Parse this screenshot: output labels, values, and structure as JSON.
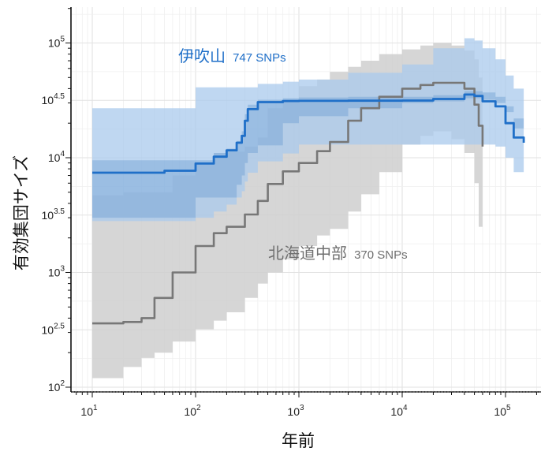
{
  "chart_data": {
    "type": "line",
    "xlabel": "年前",
    "ylabel": "有効集団サイズ",
    "x_scale": "log10",
    "y_scale": "log10",
    "xlim": [
      5,
      200000
    ],
    "ylim": [
      80,
      220000
    ],
    "grid": true,
    "x_ticks": [
      {
        "value": 10,
        "base": "10",
        "exp": "1"
      },
      {
        "value": 100,
        "base": "10",
        "exp": "2"
      },
      {
        "value": 1000,
        "base": "10",
        "exp": "3"
      },
      {
        "value": 10000,
        "base": "10",
        "exp": "4"
      },
      {
        "value": 100000,
        "base": "10",
        "exp": "5"
      }
    ],
    "y_ticks": [
      {
        "value": 100,
        "base": "10",
        "exp": "2"
      },
      {
        "value": 316.2,
        "base": "10",
        "exp": "2.5"
      },
      {
        "value": 1000,
        "base": "10",
        "exp": "3"
      },
      {
        "value": 3162,
        "base": "10",
        "exp": "3.5"
      },
      {
        "value": 10000,
        "base": "10",
        "exp": "4"
      },
      {
        "value": 31623,
        "base": "10",
        "exp": "4.5"
      },
      {
        "value": 100000,
        "base": "10",
        "exp": "5"
      }
    ],
    "series": [
      {
        "name": "伊吹山",
        "snps": "747 SNPs",
        "color": "#1f6fc8",
        "band_outer_color": "#a9c9ec",
        "band_inner_color": "#6f9fd2",
        "x": [
          10,
          20,
          50,
          100,
          150,
          200,
          250,
          280,
          300,
          320,
          400,
          700,
          1000,
          3000,
          10000,
          20000,
          40000,
          50000,
          60000,
          80000,
          100000,
          120000,
          150000
        ],
        "y": [
          7400,
          7400,
          7700,
          8900,
          10200,
          11600,
          13500,
          15500,
          21000,
          26500,
          30500,
          31200,
          31300,
          31400,
          31500,
          32500,
          35500,
          34500,
          31000,
          28000,
          20000,
          15000,
          13500
        ],
        "lo": [
          2800,
          2800,
          2800,
          3000,
          3400,
          3900,
          4500,
          5100,
          6200,
          7400,
          9300,
          10900,
          13000,
          13000,
          13000,
          13000,
          13000,
          13000,
          13000,
          12500,
          10000,
          7500,
          5500
        ],
        "hi": [
          27000,
          27000,
          27000,
          41000,
          41000,
          41000,
          41000,
          41000,
          41000,
          41000,
          44000,
          46000,
          48000,
          55000,
          65000,
          90000,
          110000,
          105000,
          90000,
          72000,
          52000,
          40000,
          33000
        ],
        "inner_lo": [
          3000,
          3000,
          3000,
          4500,
          4500,
          4500,
          5800,
          7000,
          9000,
          11000,
          12800,
          20000,
          23000,
          27000,
          30000,
          31000,
          33000,
          33000,
          32000,
          30000,
          25000,
          18000,
          15000
        ],
        "inner_hi": [
          9500,
          9500,
          9500,
          9500,
          11000,
          12000,
          14000,
          17000,
          24000,
          29000,
          32000,
          33000,
          33500,
          34000,
          34000,
          35000,
          38000,
          38000,
          37000,
          34000,
          28000,
          22000,
          18000
        ]
      },
      {
        "name": "北海道中部",
        "snps": "370 SNPs",
        "color": "#777777",
        "band_color": "#cfcfcf",
        "x": [
          10,
          20,
          30,
          40,
          60,
          100,
          150,
          200,
          300,
          400,
          500,
          700,
          1000,
          1500,
          2000,
          3000,
          4000,
          6000,
          10000,
          15000,
          20000,
          30000,
          40000,
          50000,
          55000,
          60000
        ],
        "y": [
          360,
          370,
          400,
          600,
          1000,
          1700,
          2200,
          2500,
          3200,
          4200,
          5900,
          7600,
          9000,
          11400,
          13700,
          21000,
          27000,
          34000,
          40000,
          43000,
          45000,
          45000,
          40000,
          29000,
          19000,
          12500
        ],
        "lo": [
          120,
          150,
          180,
          200,
          250,
          320,
          380,
          450,
          600,
          800,
          1000,
          1300,
          1700,
          2100,
          2400,
          3400,
          4800,
          7500,
          13000,
          15500,
          17000,
          14500,
          11000,
          6000,
          2500,
          1300
        ],
        "hi": [
          4700,
          5000,
          5000,
          5000,
          7000,
          9000,
          11000,
          11300,
          12500,
          15000,
          27000,
          32000,
          42000,
          48000,
          56000,
          62000,
          70000,
          80000,
          88000,
          95000,
          100000,
          95000,
          86000,
          72000,
          50000,
          26000
        ]
      }
    ],
    "annotations": [
      {
        "series": 0,
        "text": "伊吹山",
        "snps": "747 SNPs"
      },
      {
        "series": 1,
        "text": "北海道中部",
        "snps": "370 SNPs"
      }
    ]
  }
}
